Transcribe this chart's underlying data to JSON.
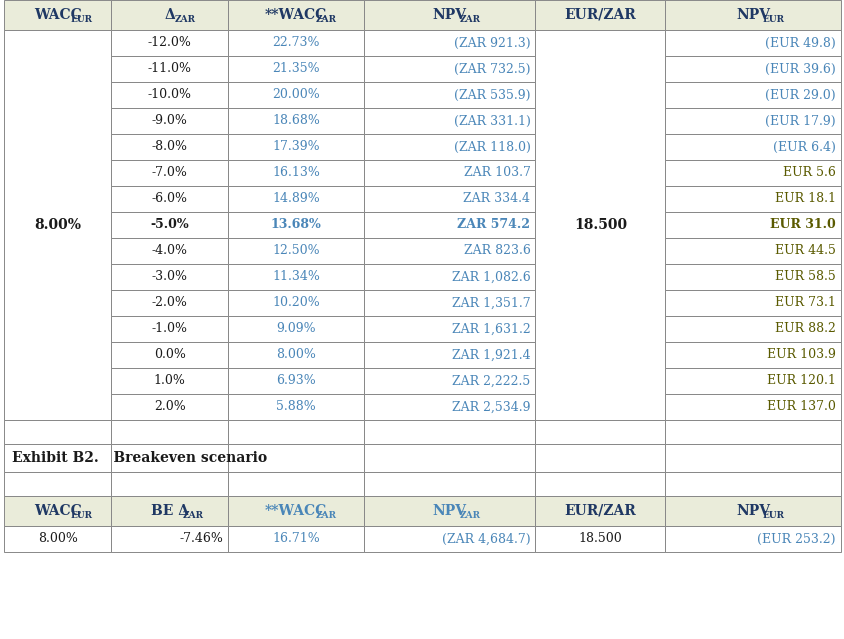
{
  "rows": [
    [
      "-12.0%",
      "22.73%",
      "(ZAR 921.3)",
      "(EUR 49.8)",
      true
    ],
    [
      "-11.0%",
      "21.35%",
      "(ZAR 732.5)",
      "(EUR 39.6)",
      true
    ],
    [
      "-10.0%",
      "20.00%",
      "(ZAR 535.9)",
      "(EUR 29.0)",
      true
    ],
    [
      "-9.0%",
      "18.68%",
      "(ZAR 331.1)",
      "(EUR 17.9)",
      true
    ],
    [
      "-8.0%",
      "17.39%",
      "(ZAR 118.0)",
      "(EUR 6.4)",
      true
    ],
    [
      "-7.0%",
      "16.13%",
      "ZAR 103.7",
      "EUR 5.6",
      false
    ],
    [
      "-6.0%",
      "14.89%",
      "ZAR 334.4",
      "EUR 18.1",
      false
    ],
    [
      "-5.0%",
      "13.68%",
      "ZAR 574.2",
      "EUR 31.0",
      false
    ],
    [
      "-4.0%",
      "12.50%",
      "ZAR 823.6",
      "EUR 44.5",
      false
    ],
    [
      "-3.0%",
      "11.34%",
      "ZAR 1,082.6",
      "EUR 58.5",
      false
    ],
    [
      "-2.0%",
      "10.20%",
      "ZAR 1,351.7",
      "EUR 73.1",
      false
    ],
    [
      "-1.0%",
      "9.09%",
      "ZAR 1,631.2",
      "EUR 88.2",
      false
    ],
    [
      "0.0%",
      "8.00%",
      "ZAR 1,921.4",
      "EUR 103.9",
      false
    ],
    [
      "1.0%",
      "6.93%",
      "ZAR 2,222.5",
      "EUR 120.1",
      false
    ],
    [
      "2.0%",
      "5.88%",
      "ZAR 2,534.9",
      "EUR 137.0",
      false
    ]
  ],
  "wacc_eur_val": "8.00%",
  "eur_zar_val": "18.500",
  "bold_row_idx": 7,
  "exhibit_label": "Exhibit B2.   Breakeven scenario",
  "be_row": [
    "8.00%",
    "-7.46%",
    "16.71%",
    "(ZAR 4,684.7)",
    "18.500",
    "(EUR 253.2)"
  ],
  "bg_header": "#eaecda",
  "bg_white": "#ffffff",
  "border_color": "#888888",
  "navy": "#1f3864",
  "steel_blue": "#4a86b8",
  "olive": "#5a5a00",
  "dark_text": "#1a1a1a"
}
